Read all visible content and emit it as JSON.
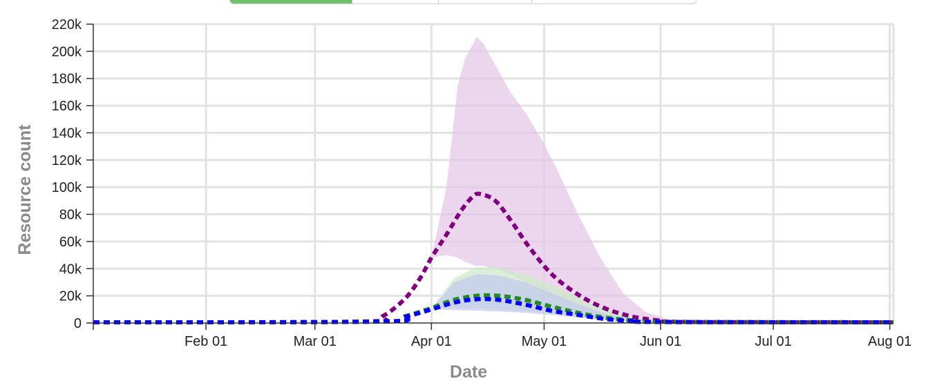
{
  "tabs": [
    "",
    "",
    "",
    ""
  ],
  "chart_data": {
    "type": "line",
    "title": "",
    "xlabel": "Date",
    "ylabel": "Resource count",
    "xlim": [
      "2020-01-02",
      "2020-08-02"
    ],
    "ylim": [
      0,
      220000
    ],
    "yticks": [
      0,
      20000,
      40000,
      60000,
      80000,
      100000,
      120000,
      140000,
      160000,
      180000,
      200000,
      220000
    ],
    "ytick_labels": [
      "0",
      "20k",
      "40k",
      "60k",
      "80k",
      "100k",
      "120k",
      "140k",
      "160k",
      "180k",
      "200k",
      "220k"
    ],
    "xticks": [
      "2020-02-01",
      "2020-03-01",
      "2020-04-01",
      "2020-05-01",
      "2020-06-01",
      "2020-07-01",
      "2020-08-01"
    ],
    "xtick_labels": [
      "Feb 01",
      "Mar 01",
      "Apr 01",
      "May 01",
      "Jun 01",
      "Jul 01",
      "Aug 01"
    ],
    "grid": true,
    "colors": {
      "purple": "#800080",
      "green": "#228b22",
      "blue": "#0000ff",
      "purple_band": "#e4c6e6",
      "green_band": "#cde9c9",
      "blue_band": "#c4c9ef",
      "grid": "#e2e2e2"
    },
    "series": [
      {
        "color": "purple",
        "style": "dotted",
        "x": [
          "2020-01-02",
          "2020-03-13",
          "2020-03-19",
          "2020-03-25",
          "2020-03-29",
          "2020-04-01",
          "2020-04-05",
          "2020-04-09",
          "2020-04-12",
          "2020-04-14",
          "2020-04-18",
          "2020-04-22",
          "2020-04-27",
          "2020-05-03",
          "2020-05-10",
          "2020-05-17",
          "2020-05-24",
          "2020-05-31",
          "2020-06-07",
          "2020-08-02"
        ],
        "y": [
          500,
          1000,
          5000,
          18000,
          33000,
          48000,
          65000,
          83000,
          93000,
          95000,
          90000,
          76000,
          56000,
          36000,
          21000,
          11000,
          5000,
          2000,
          800,
          500
        ],
        "band": {
          "x": [
            "2020-04-01",
            "2020-04-05",
            "2020-04-08",
            "2020-04-10",
            "2020-04-12",
            "2020-04-13",
            "2020-04-15",
            "2020-04-18",
            "2020-04-22",
            "2020-04-26",
            "2020-05-01",
            "2020-05-05",
            "2020-05-10",
            "2020-05-16",
            "2020-05-22",
            "2020-05-28",
            "2020-06-03",
            "2020-06-10"
          ],
          "lower": [
            48000,
            50000,
            48000,
            45000,
            43000,
            42000,
            42000,
            40000,
            36000,
            30000,
            22000,
            16000,
            10000,
            5000,
            2500,
            1200,
            600,
            400
          ],
          "upper": [
            48000,
            100000,
            175000,
            195000,
            205000,
            211000,
            205000,
            190000,
            170000,
            155000,
            132000,
            110000,
            80000,
            48000,
            22000,
            8000,
            3000,
            1000
          ]
        }
      },
      {
        "color": "green",
        "style": "dotted",
        "x": [
          "2020-01-02",
          "2020-03-18",
          "2020-03-25",
          "2020-04-01",
          "2020-04-07",
          "2020-04-13",
          "2020-04-19",
          "2020-04-26",
          "2020-05-03",
          "2020-05-10",
          "2020-05-17",
          "2020-05-24",
          "2020-05-31",
          "2020-08-02"
        ],
        "y": [
          500,
          1000,
          5000,
          11000,
          17000,
          20000,
          20000,
          17000,
          12000,
          7500,
          4000,
          2000,
          800,
          500
        ],
        "band": {
          "x": [
            "2020-04-01",
            "2020-04-07",
            "2020-04-13",
            "2020-04-19",
            "2020-04-26",
            "2020-05-03",
            "2020-05-10",
            "2020-05-17",
            "2020-05-24",
            "2020-05-31"
          ],
          "lower": [
            11000,
            11000,
            10500,
            10000,
            9000,
            7000,
            4500,
            2500,
            1200,
            600
          ],
          "upper": [
            11000,
            33000,
            41000,
            41000,
            36000,
            28000,
            19000,
            11000,
            5000,
            1500
          ]
        }
      },
      {
        "color": "blue",
        "style": "dotted",
        "x": [
          "2020-01-02",
          "2020-03-18",
          "2020-03-25",
          "2020-04-01",
          "2020-04-07",
          "2020-04-13",
          "2020-04-19",
          "2020-04-26",
          "2020-05-03",
          "2020-05-10",
          "2020-05-17",
          "2020-05-24",
          "2020-05-31",
          "2020-08-02"
        ],
        "y": [
          500,
          1000,
          4500,
          10000,
          15000,
          17500,
          17000,
          13500,
          9000,
          6000,
          3000,
          1500,
          700,
          500
        ],
        "band": {
          "x": [
            "2020-04-01",
            "2020-04-07",
            "2020-04-13",
            "2020-04-19",
            "2020-04-26",
            "2020-05-03",
            "2020-05-10",
            "2020-05-17",
            "2020-05-24",
            "2020-05-31"
          ],
          "lower": [
            10000,
            9500,
            9000,
            8500,
            7500,
            6000,
            4000,
            2200,
            1100,
            500
          ],
          "upper": [
            10000,
            30000,
            36000,
            35000,
            30000,
            22000,
            14000,
            7000,
            3000,
            1000
          ]
        }
      }
    ]
  }
}
